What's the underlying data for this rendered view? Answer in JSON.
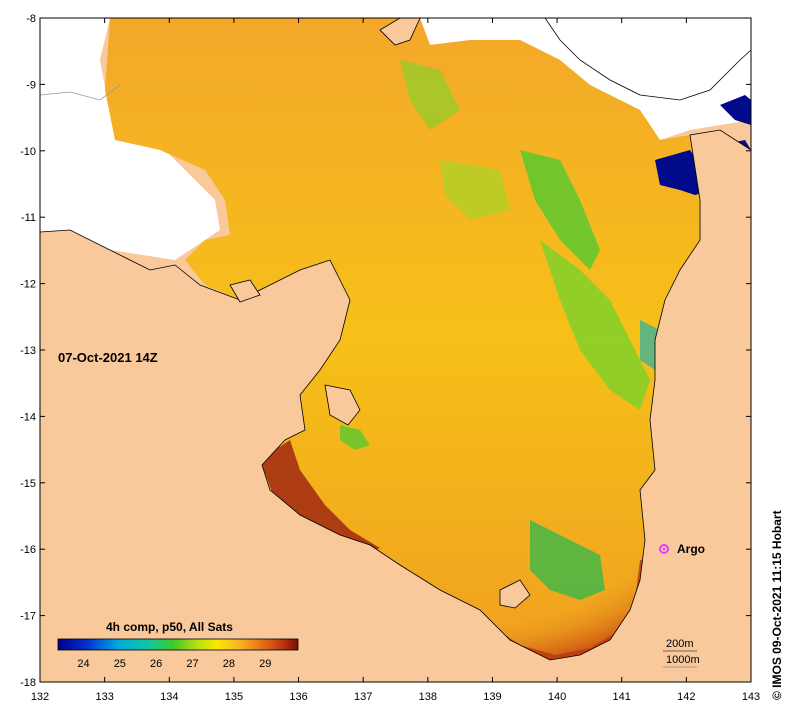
{
  "map": {
    "timestamp_label": "07-Oct-2021 14Z",
    "credit": "© IMOS 09-Oct-2021 11:15 Hobart",
    "legend": {
      "title": "4h comp, p50, All Sats",
      "ticks": [
        "24",
        "25",
        "26",
        "27",
        "28",
        "29"
      ]
    },
    "contours": [
      "200m",
      "1000m"
    ],
    "argo": {
      "label": "Argo",
      "lon": 141.7,
      "lat": -16.0,
      "color": "#e040ff"
    },
    "x_ticks": [
      "132",
      "133",
      "134",
      "135",
      "136",
      "137",
      "138",
      "139",
      "140",
      "141",
      "142",
      "143"
    ],
    "y_ticks": [
      "-8",
      "-9",
      "-10",
      "-11",
      "-12",
      "-13",
      "-14",
      "-15",
      "-16",
      "-17",
      "-18"
    ],
    "colors": {
      "land": "#f9c89b",
      "no_data": "#ffffff",
      "sst_warm": "#f2a520",
      "sst_hot": "#8b1a10",
      "sst_cool": "#4ec832"
    }
  }
}
